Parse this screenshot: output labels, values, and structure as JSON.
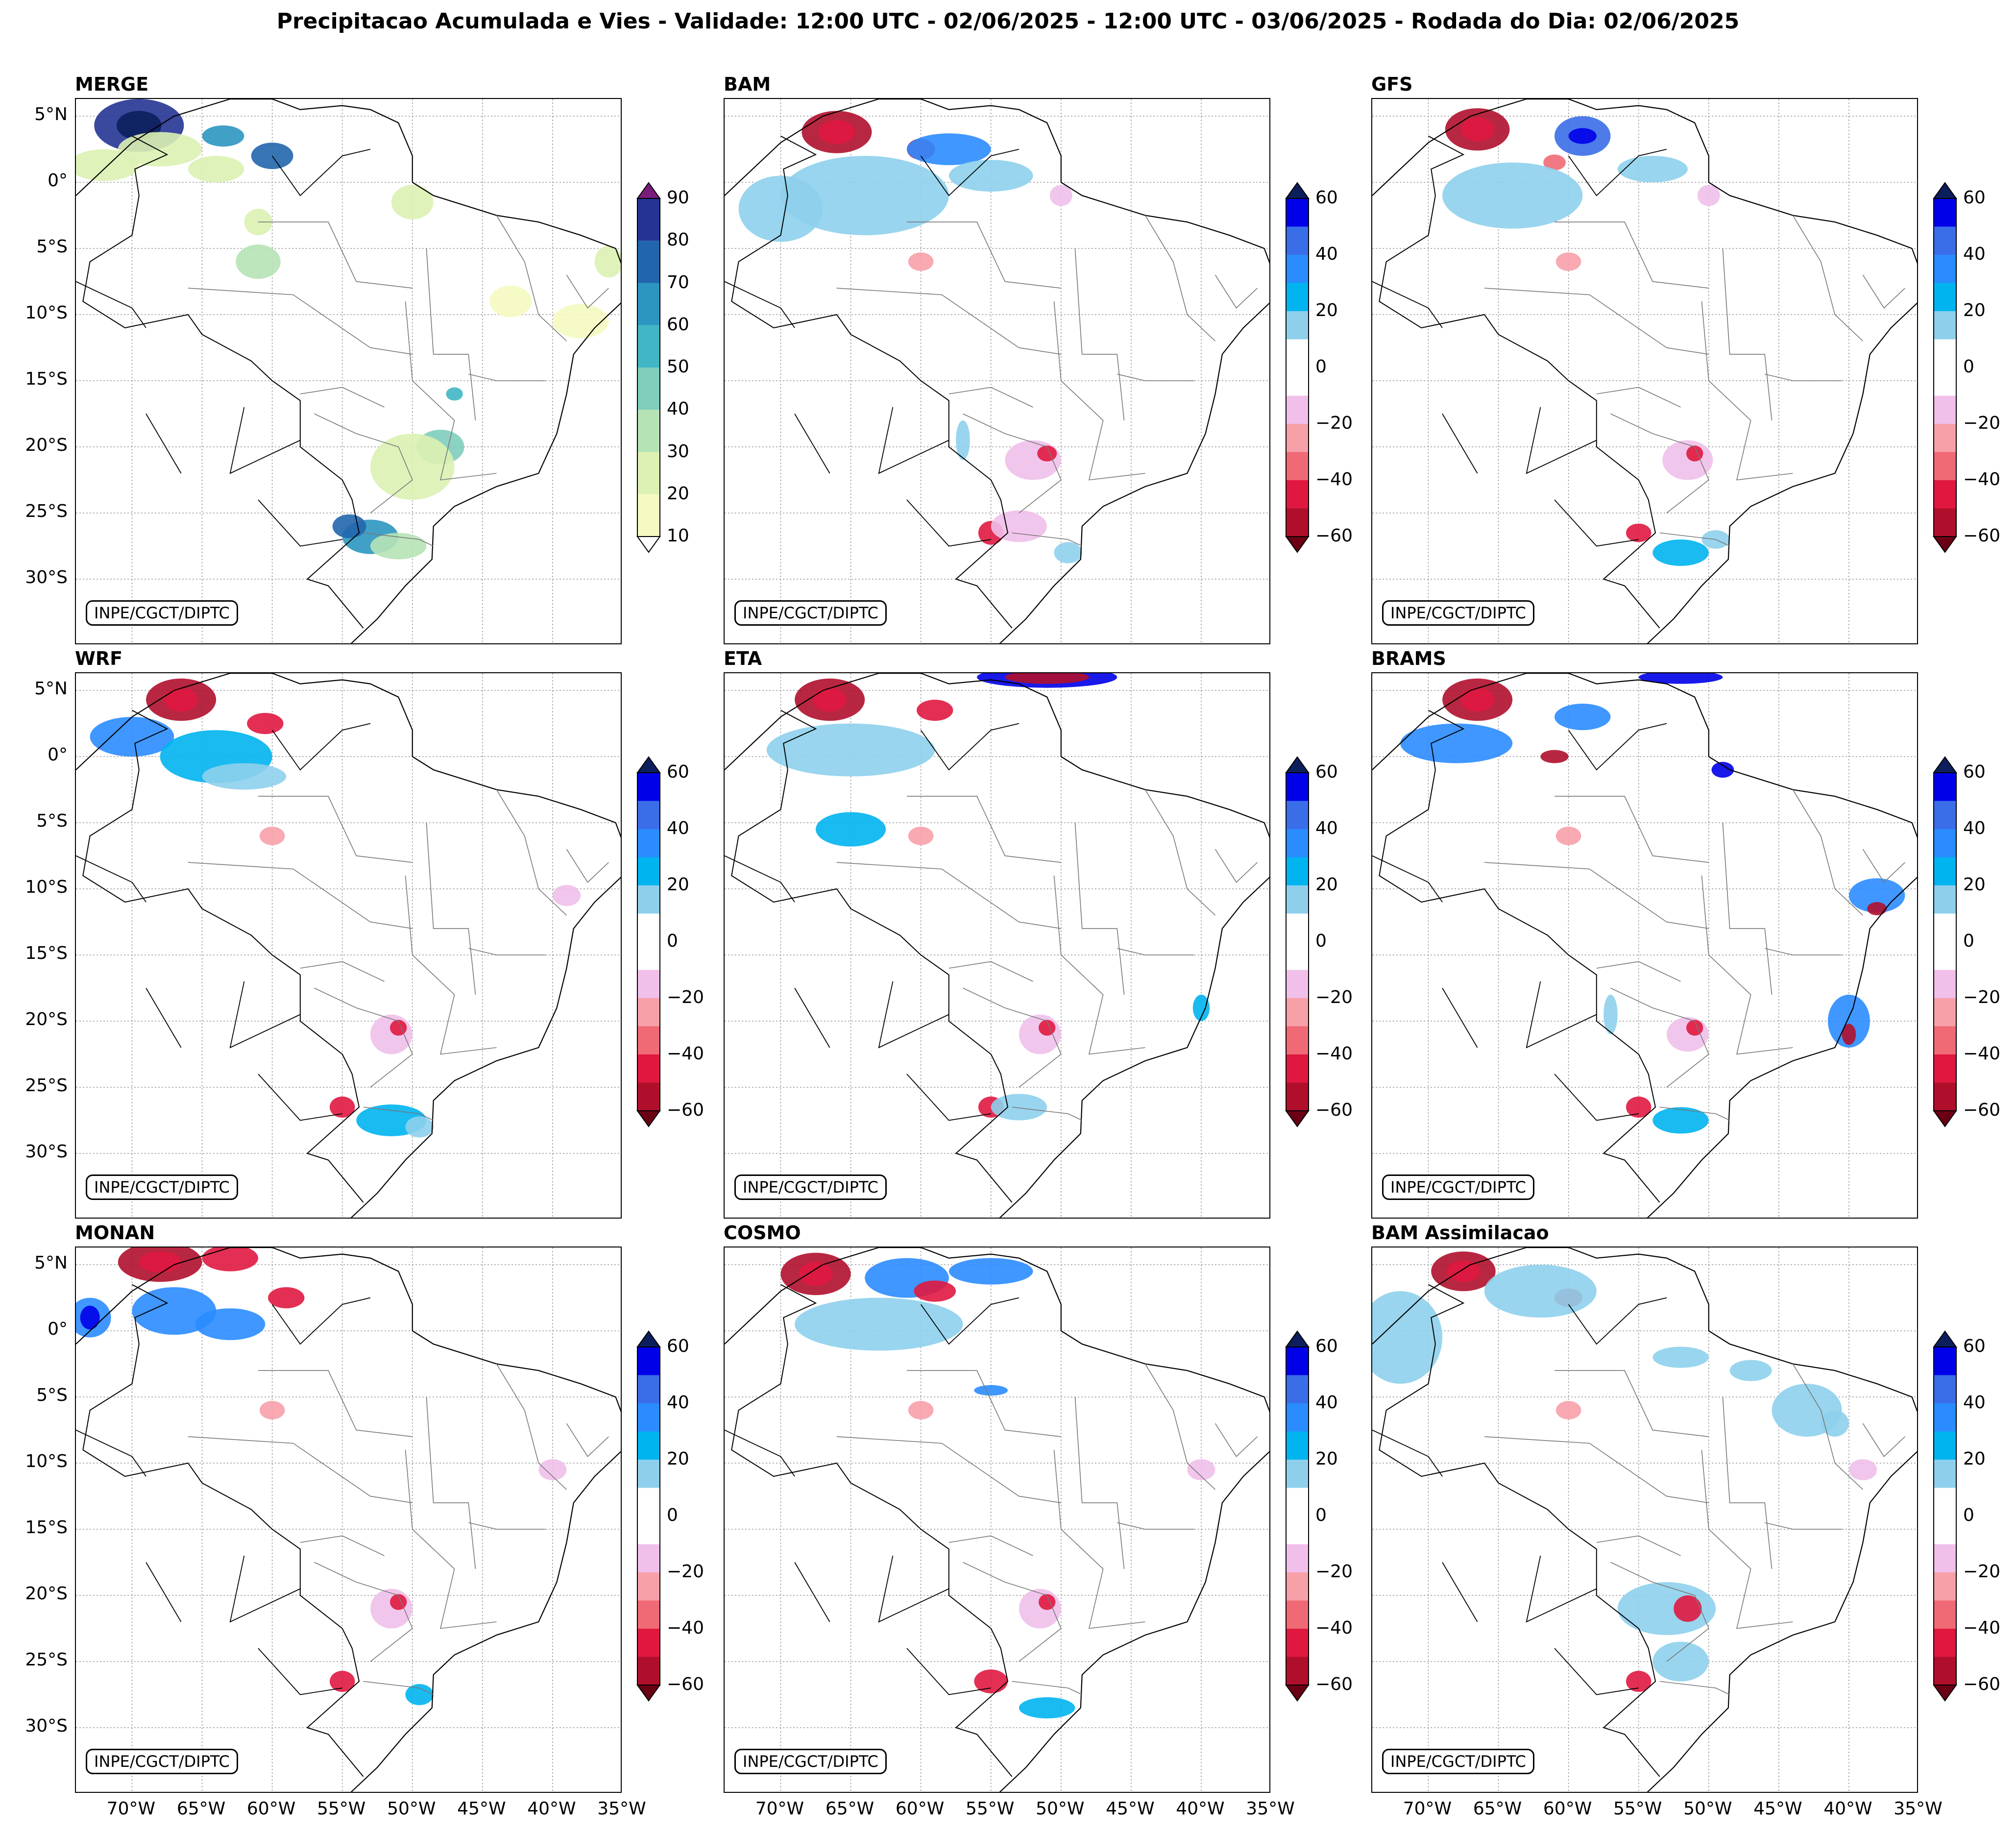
{
  "title": "Precipitacao Acumulada e Vies - Validade: 12:00 UTC - 02/06/2025 - 12:00 UTC - 03/06/2025 - Rodada do Dia: 02/06/2025",
  "credit": "INPE/CGCT/DIPTC",
  "lat_labels": [
    "5°N",
    "0°",
    "5°S",
    "10°S",
    "15°S",
    "20°S",
    "25°S",
    "30°S"
  ],
  "lon_labels": [
    "70°W",
    "65°W",
    "60°W",
    "55°W",
    "50°W",
    "45°W",
    "40°W",
    "35°W"
  ],
  "panels": [
    {
      "name": "MERGE",
      "type": "precip"
    },
    {
      "name": "BAM",
      "type": "bias"
    },
    {
      "name": "GFS",
      "type": "bias"
    },
    {
      "name": "WRF",
      "type": "bias"
    },
    {
      "name": "ETA",
      "type": "bias"
    },
    {
      "name": "BRAMS",
      "type": "bias"
    },
    {
      "name": "MONAN",
      "type": "bias"
    },
    {
      "name": "COSMO",
      "type": "bias"
    },
    {
      "name": "BAM Assimilacao",
      "type": "bias"
    }
  ],
  "colorbars": {
    "precip": {
      "ticks": [
        "10",
        "20",
        "30",
        "40",
        "50",
        "60",
        "70",
        "80",
        "90"
      ],
      "colors": [
        "#f5fac0",
        "#dcf1b2",
        "#b6e3b6",
        "#7fcdbb",
        "#41b6c4",
        "#2c96c0",
        "#2166ac",
        "#253494",
        "#0c1f5c"
      ],
      "under_color": "#ffffff",
      "over_color": "#7a1c7a"
    },
    "bias": {
      "ticks": [
        "60",
        "40",
        "20",
        "0",
        "−20",
        "−40",
        "−60"
      ],
      "colors_top_to_bottom": [
        "#0000e8",
        "#3a6ee8",
        "#2a8cff",
        "#00b4f0",
        "#8ed0ec",
        "#ffffff",
        "#ffffff",
        "#f0c0ea",
        "#f7a0a8",
        "#f06a76",
        "#e01840",
        "#b00f2c"
      ],
      "over_color": "#0c1f5c",
      "under_color": "#6b0015"
    }
  }
}
